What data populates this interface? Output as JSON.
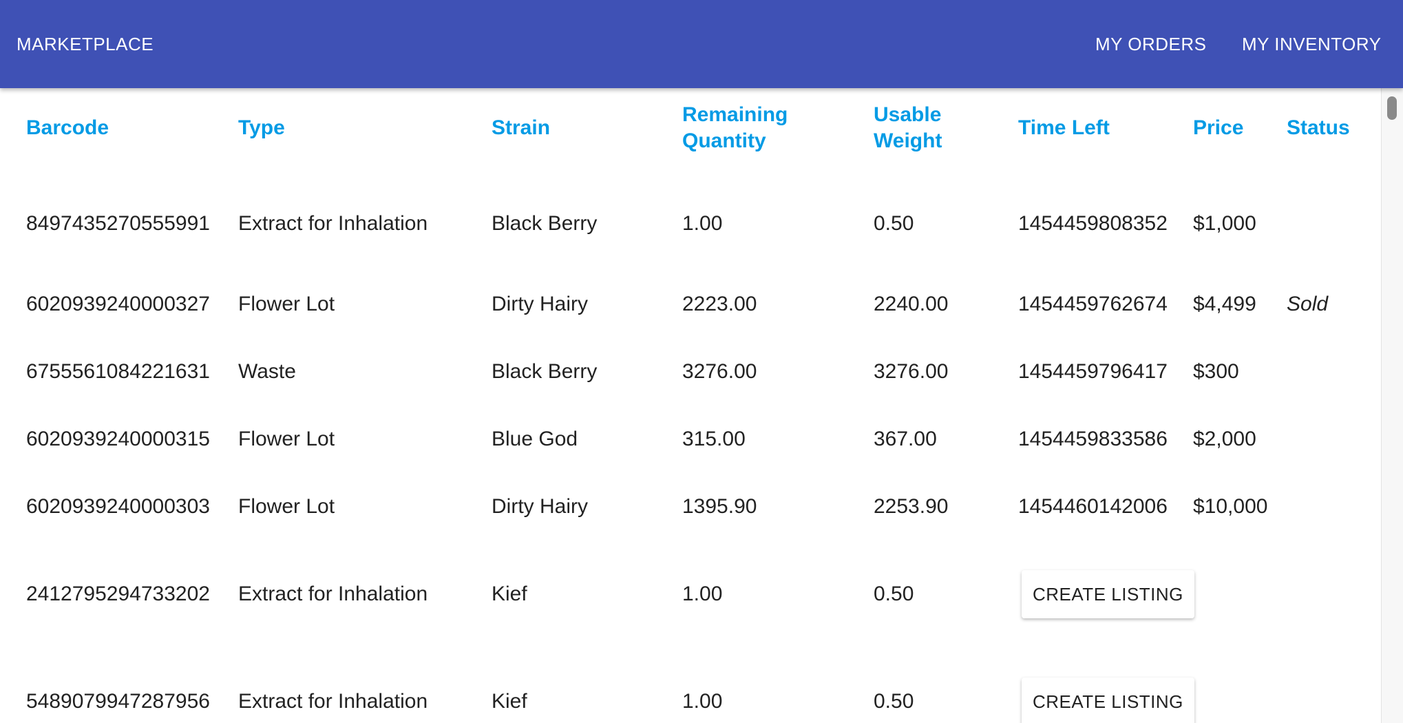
{
  "nav": {
    "brand": "MARKETPLACE",
    "my_orders": "MY ORDERS",
    "my_inventory": "MY INVENTORY"
  },
  "colors": {
    "appbar": "#3f51b5",
    "header_text": "#039be5",
    "body_text": "#222222"
  },
  "table": {
    "headers": {
      "barcode": "Barcode",
      "type": "Type",
      "strain": "Strain",
      "remaining_line1": "Remaining",
      "remaining_line2": "Quantity",
      "usable_line1": "Usable",
      "usable_line2": "Weight",
      "time_left": "Time Left",
      "price": "Price",
      "status": "Status"
    },
    "rows": [
      {
        "barcode": "8497435270555991",
        "type": "Extract for Inhalation",
        "strain": "Black Berry",
        "remaining": "1.00",
        "usable": "0.50",
        "time_left": "1454459808352",
        "price": "$1,000",
        "status": ""
      },
      {
        "barcode": "6020939240000327",
        "type": "Flower Lot",
        "strain": "Dirty Hairy",
        "remaining": "2223.00",
        "usable": "2240.00",
        "time_left": "1454459762674",
        "price": "$4,499",
        "status": "Sold"
      },
      {
        "barcode": "6755561084221631",
        "type": "Waste",
        "strain": "Black Berry",
        "remaining": "3276.00",
        "usable": "3276.00",
        "time_left": "1454459796417",
        "price": "$300",
        "status": ""
      },
      {
        "barcode": "6020939240000315",
        "type": "Flower Lot",
        "strain": "Blue God",
        "remaining": "315.00",
        "usable": "367.00",
        "time_left": "1454459833586",
        "price": "$2,000",
        "status": ""
      },
      {
        "barcode": "6020939240000303",
        "type": "Flower Lot",
        "strain": "Dirty Hairy",
        "remaining": "1395.90",
        "usable": "2253.90",
        "time_left": "1454460142006",
        "price": "$10,000",
        "status": ""
      },
      {
        "barcode": "2412795294733202",
        "type": "Extract for Inhalation",
        "strain": "Kief",
        "remaining": "1.00",
        "usable": "0.50",
        "action": "CREATE LISTING"
      },
      {
        "barcode": "5489079947287956",
        "type": "Extract for Inhalation",
        "strain": "Kief",
        "remaining": "1.00",
        "usable": "0.50",
        "action": "CREATE LISTING"
      }
    ]
  }
}
